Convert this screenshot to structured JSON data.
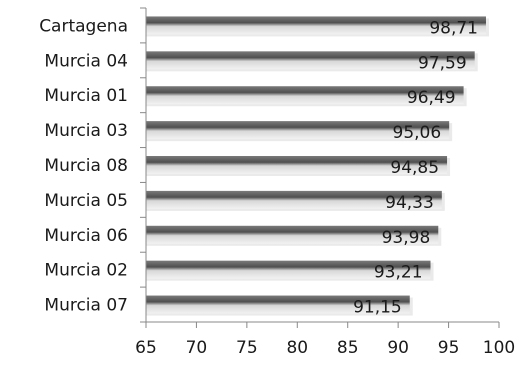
{
  "chart_data": {
    "type": "bar",
    "orientation": "horizontal",
    "categories": [
      "Cartagena",
      "Murcia 04",
      "Murcia 01",
      "Murcia 03",
      "Murcia 08",
      "Murcia 05",
      "Murcia 06",
      "Murcia 02",
      "Murcia 07"
    ],
    "values": [
      98.71,
      97.59,
      96.49,
      95.06,
      94.85,
      94.33,
      93.98,
      93.21,
      91.15
    ],
    "data_labels": [
      "98,71",
      "97,59",
      "96,49",
      "95,06",
      "94,85",
      "94,33",
      "93,98",
      "93,21",
      "91,15"
    ],
    "xlim": [
      65,
      100
    ],
    "x_ticks": [
      "65",
      "70",
      "75",
      "80",
      "85",
      "90",
      "95",
      "100"
    ],
    "grid": false,
    "legend": "none",
    "colors": {
      "bar_dark": "#6e6e6e",
      "bar_light": "#e8e8e8",
      "axis": "#888888"
    }
  }
}
